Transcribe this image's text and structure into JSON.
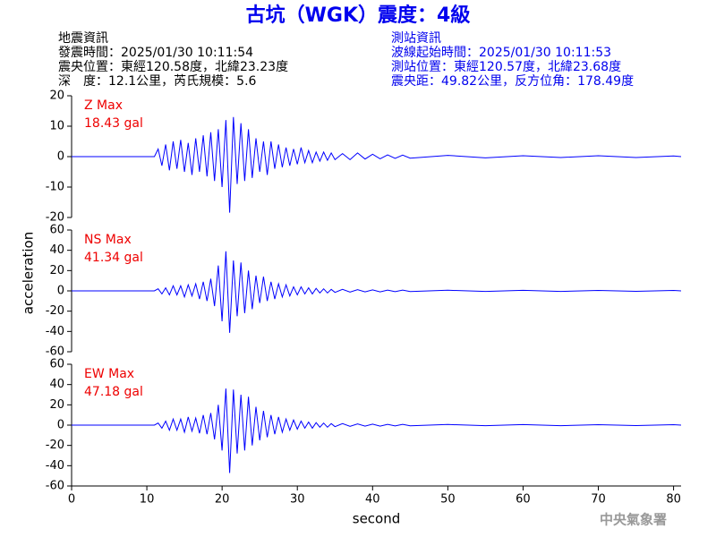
{
  "title": "古坑（WGK）震度：4級",
  "header": {
    "left": [
      "地震資訊",
      "發震時間：2025/01/30 10:11:54",
      "震央位置：東經120.58度，北緯23.23度",
      "深　度：12.1公里，芮氏規模：5.6"
    ],
    "right": [
      "測站資訊",
      "波線起始時間：2025/01/30 10:11:53",
      "測站位置：東經120.57度，北緯23.68度",
      "震央距：49.82公里，反方位角：178.49度"
    ]
  },
  "footer": "中央氣象署",
  "chart_data": [
    {
      "type": "line",
      "color": "#0000ff",
      "max_label": "Z Max",
      "max_value_label": "18.43 gal",
      "xlim": [
        0,
        81
      ],
      "ylim": [
        -20,
        20
      ],
      "yticks": [
        -20,
        -10,
        0,
        10,
        20
      ],
      "x": [
        0,
        11,
        11.5,
        12,
        12.5,
        13,
        13.5,
        14,
        14.5,
        15,
        15.5,
        16,
        16.5,
        17,
        17.5,
        18,
        18.5,
        19,
        19.5,
        20,
        20.5,
        21,
        21.5,
        22,
        22.5,
        23,
        23.5,
        24,
        24.5,
        25,
        25.5,
        26,
        26.5,
        27,
        27.5,
        28,
        28.5,
        29,
        29.5,
        30,
        30.5,
        31,
        31.5,
        32,
        32.5,
        33,
        33.5,
        34,
        34.5,
        35,
        36,
        37,
        38,
        39,
        40,
        41,
        42,
        43,
        44,
        45,
        50,
        55,
        60,
        65,
        70,
        75,
        80,
        81
      ],
      "values": [
        0,
        0,
        2.5,
        -3,
        4,
        -4.5,
        5,
        -4,
        5.5,
        -5,
        4.5,
        -6,
        6,
        -5,
        7,
        -6.5,
        8,
        -8,
        9,
        -10,
        12,
        -18.4,
        13,
        -9,
        11,
        -8,
        9,
        -7,
        6,
        -5,
        5,
        -6,
        5,
        -4,
        4,
        -3.5,
        3,
        -3,
        2.5,
        -2.5,
        3,
        -2,
        2,
        -2,
        1.5,
        -1.5,
        1.5,
        -1.2,
        1.2,
        -1,
        1,
        -1,
        1.2,
        -0.8,
        0.8,
        -0.7,
        0.6,
        -0.6,
        0.5,
        -0.5,
        0.4,
        -0.4,
        0.3,
        -0.3,
        0.3,
        -0.3,
        0.2,
        0
      ]
    },
    {
      "type": "line",
      "color": "#0000ff",
      "max_label": "NS Max",
      "max_value_label": "41.34 gal",
      "ylabel": "acceleration",
      "xlim": [
        0,
        81
      ],
      "ylim": [
        -60,
        60
      ],
      "yticks": [
        -60,
        -40,
        -20,
        0,
        20,
        40,
        60
      ],
      "x": [
        0,
        11,
        11.5,
        12,
        12.5,
        13,
        13.5,
        14,
        14.5,
        15,
        15.5,
        16,
        16.5,
        17,
        17.5,
        18,
        18.5,
        19,
        19.5,
        20,
        20.5,
        21,
        21.5,
        22,
        22.5,
        23,
        23.5,
        24,
        24.5,
        25,
        25.5,
        26,
        26.5,
        27,
        27.5,
        28,
        28.5,
        29,
        29.5,
        30,
        30.5,
        31,
        31.5,
        32,
        32.5,
        33,
        33.5,
        34,
        34.5,
        35,
        36,
        37,
        38,
        39,
        40,
        41,
        42,
        43,
        44,
        45,
        50,
        55,
        60,
        65,
        70,
        75,
        80,
        81
      ],
      "values": [
        0,
        0,
        2,
        -3,
        3,
        -4,
        5,
        -4,
        5,
        -6,
        6,
        -5,
        7,
        -8,
        9,
        -10,
        12,
        -15,
        25,
        -30,
        39,
        -41.3,
        30,
        -25,
        28,
        -22,
        20,
        -18,
        15,
        -12,
        14,
        -10,
        9,
        -8,
        7,
        -6,
        6,
        -5,
        4,
        -4,
        4,
        -3,
        3,
        -3,
        2.5,
        -2,
        2,
        -2,
        1.5,
        -1.5,
        1.5,
        -1.2,
        1.2,
        -1,
        1,
        -1,
        0.8,
        -0.8,
        0.8,
        -0.6,
        0.6,
        -0.5,
        0.5,
        -0.5,
        0.4,
        -0.4,
        0.4,
        0
      ]
    },
    {
      "type": "line",
      "color": "#0000ff",
      "max_label": "EW Max",
      "max_value_label": "47.18 gal",
      "xlabel": "second",
      "xlim": [
        0,
        81
      ],
      "xticks": [
        0,
        10,
        20,
        30,
        40,
        50,
        60,
        70,
        80
      ],
      "ylim": [
        -60,
        60
      ],
      "yticks": [
        -60,
        -40,
        -20,
        0,
        20,
        40,
        60
      ],
      "x": [
        0,
        11,
        11.5,
        12,
        12.5,
        13,
        13.5,
        14,
        14.5,
        15,
        15.5,
        16,
        16.5,
        17,
        17.5,
        18,
        18.5,
        19,
        19.5,
        20,
        20.5,
        21,
        21.5,
        22,
        22.5,
        23,
        23.5,
        24,
        24.5,
        25,
        25.5,
        26,
        26.5,
        27,
        27.5,
        28,
        28.5,
        29,
        29.5,
        30,
        30.5,
        31,
        31.5,
        32,
        32.5,
        33,
        33.5,
        34,
        34.5,
        35,
        36,
        37,
        38,
        39,
        40,
        41,
        42,
        43,
        44,
        45,
        50,
        55,
        60,
        65,
        70,
        75,
        80,
        81
      ],
      "values": [
        0,
        0,
        2,
        -3,
        4,
        -5,
        6,
        -5,
        6,
        -7,
        8,
        -6,
        7,
        -8,
        10,
        -9,
        12,
        -14,
        20,
        -25,
        36,
        -47.2,
        35,
        -28,
        30,
        -25,
        28,
        -20,
        18,
        -15,
        14,
        -12,
        10,
        -9,
        8,
        -7,
        6,
        -5,
        5,
        -4,
        4,
        -3,
        3,
        -3,
        2.5,
        -2,
        2,
        -2,
        1.5,
        -1.5,
        1.5,
        -1.2,
        1.2,
        -1,
        1,
        -1,
        0.8,
        -0.8,
        0.8,
        -0.6,
        0.6,
        -0.5,
        0.5,
        -0.5,
        0.4,
        -0.4,
        0.4,
        0
      ]
    }
  ]
}
